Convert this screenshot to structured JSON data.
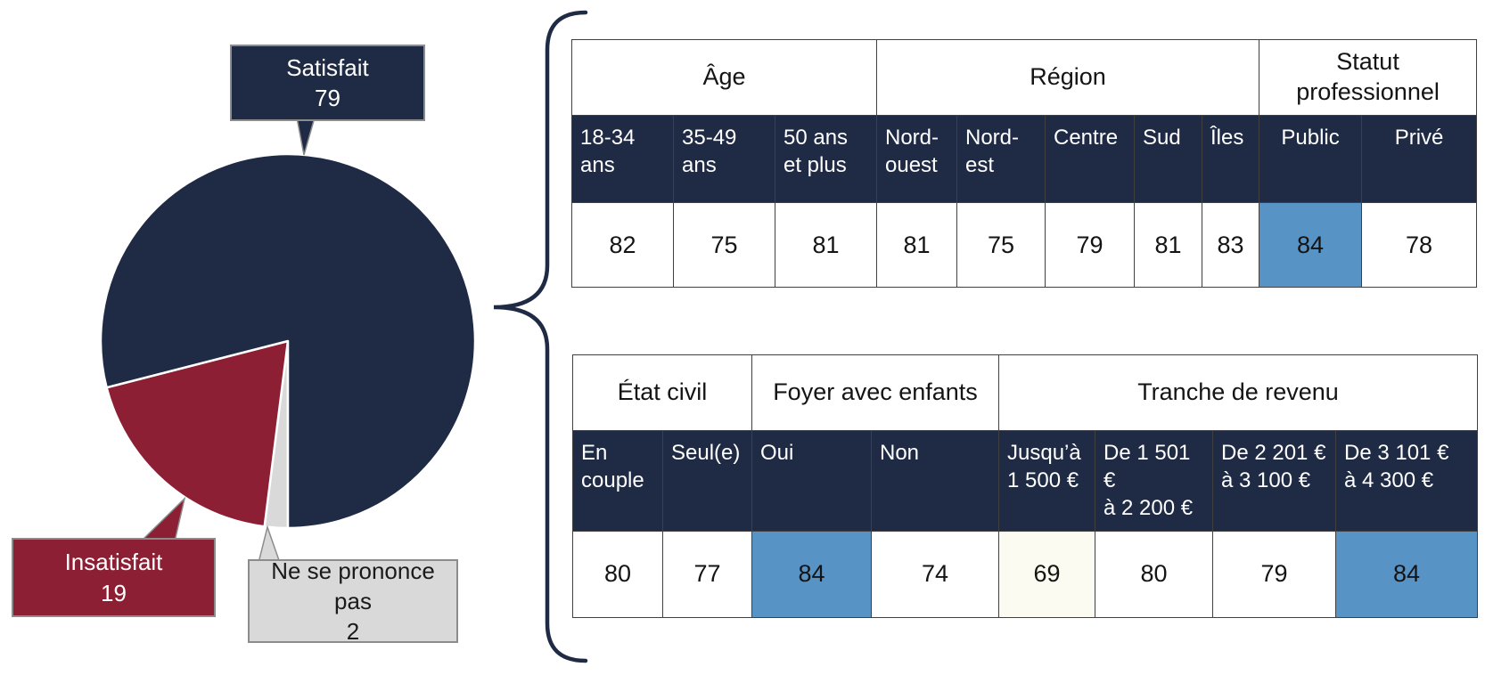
{
  "chart_data": [
    {
      "type": "pie",
      "labels": [
        "Satisfait",
        "Insatisfait",
        "Ne se prononce pas"
      ],
      "values": [
        79,
        19,
        2
      ],
      "colors": [
        "#1F2A44",
        "#8C1F33",
        "#D9D9D9"
      ],
      "label_text_colors": [
        "#FFFFFF",
        "#FFFFFF",
        "#1A1A1A"
      ],
      "label_border_color": "#8C8C8C",
      "start_angle_deg": 180,
      "direction": "counterclockwise",
      "slice_separator_color": "#FFFFFF"
    },
    {
      "type": "table",
      "group_headers": [
        {
          "label": "Âge",
          "span": 3
        },
        {
          "label": "Région",
          "span": 5
        },
        {
          "label": "Statut\nprofessionnel",
          "span": 2
        }
      ],
      "columns": [
        "18-34\nans",
        "35-49\nans",
        "50 ans\net plus",
        "Nord-\nouest",
        "Nord-\nest",
        "Centre",
        "Sud",
        "Îles",
        "Public",
        "Privé"
      ],
      "values": [
        82,
        75,
        81,
        81,
        75,
        79,
        81,
        83,
        84,
        78
      ],
      "header_bg": "#1F2A44",
      "header_text_color": "#FFFFFF",
      "highlights": [
        {
          "column_index": 8,
          "color": "#5893C6"
        }
      ]
    },
    {
      "type": "table",
      "group_headers": [
        {
          "label": "État civil",
          "span": 2
        },
        {
          "label": "Foyer avec enfants",
          "span": 2
        },
        {
          "label": "Tranche de revenu",
          "span": 4
        }
      ],
      "columns": [
        "En\ncouple",
        "Seul(e)",
        "Oui",
        "Non",
        "Jusqu’à\n1 500 €",
        "De 1 501 €\nà 2 200 €",
        "De 2 201 €\nà 3 100 €",
        "De 3 101 €\nà 4 300 €"
      ],
      "values": [
        80,
        77,
        84,
        74,
        69,
        80,
        79,
        84
      ],
      "header_bg": "#1F2A44",
      "header_text_color": "#FFFFFF",
      "highlights": [
        {
          "column_index": 2,
          "color": "#5893C6"
        },
        {
          "column_index": 4,
          "color": "#FBFBF1"
        },
        {
          "column_index": 7,
          "color": "#5893C6"
        }
      ]
    }
  ]
}
